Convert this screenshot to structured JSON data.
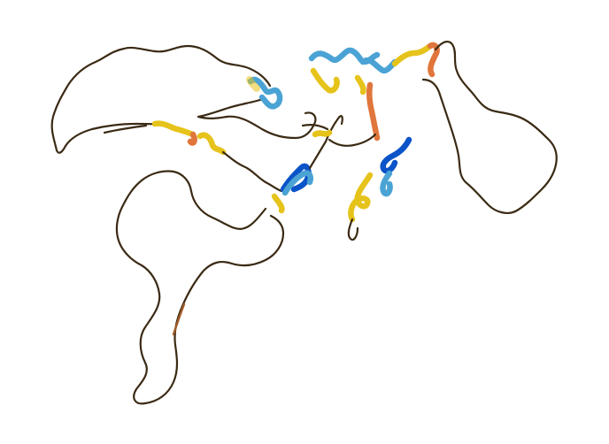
{
  "image": {
    "subject": "protein-structure-cartoon",
    "background_color": "#ffffff"
  },
  "palette": {
    "very_high_confidence": "#0b53c8",
    "confident": "#4aa3d4",
    "low_confidence": "#e6c31a",
    "very_low_confidence": "#e0763c",
    "coil_dark": "#3b2a14"
  }
}
